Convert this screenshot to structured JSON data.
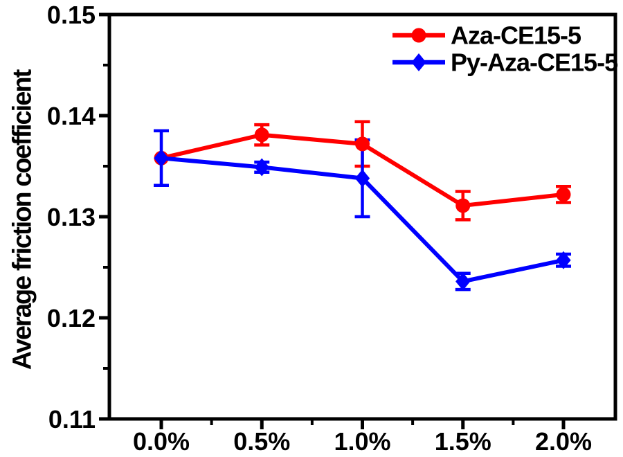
{
  "chart_data": {
    "type": "line",
    "title": "",
    "xlabel": "",
    "ylabel": "Average friction coefficient",
    "categories": [
      "0.0%",
      "0.5%",
      "1.0%",
      "1.5%",
      "2.0%"
    ],
    "y_tick_labels": [
      "0.15",
      "0.14",
      "0.13",
      "0.12",
      "0.11"
    ],
    "y_major_ticks": [
      0.15,
      0.14,
      0.13,
      0.12,
      0.11
    ],
    "y_minor_ticks": [
      0.145,
      0.135,
      0.125,
      0.115
    ],
    "ylim": [
      0.11,
      0.15
    ],
    "grid": false,
    "legend_position": "top-right",
    "series": [
      {
        "name": "Aza-CE15-5",
        "color": "#ff0000",
        "marker": "circle",
        "values": [
          0.1358,
          0.1381,
          0.1372,
          0.1311,
          0.1322
        ],
        "errors": [
          0,
          0.001,
          0.0022,
          0.0014,
          0.0008
        ]
      },
      {
        "name": "Py-Aza-CE15-5",
        "color": "#0000ff",
        "marker": "diamond",
        "values": [
          0.1358,
          0.1349,
          0.1338,
          0.1236,
          0.1257
        ],
        "errors": [
          0.0027,
          0.0005,
          0.0038,
          0.0008,
          0.0006
        ]
      }
    ]
  },
  "colors": {
    "axis": "#000000",
    "background": "#ffffff"
  }
}
